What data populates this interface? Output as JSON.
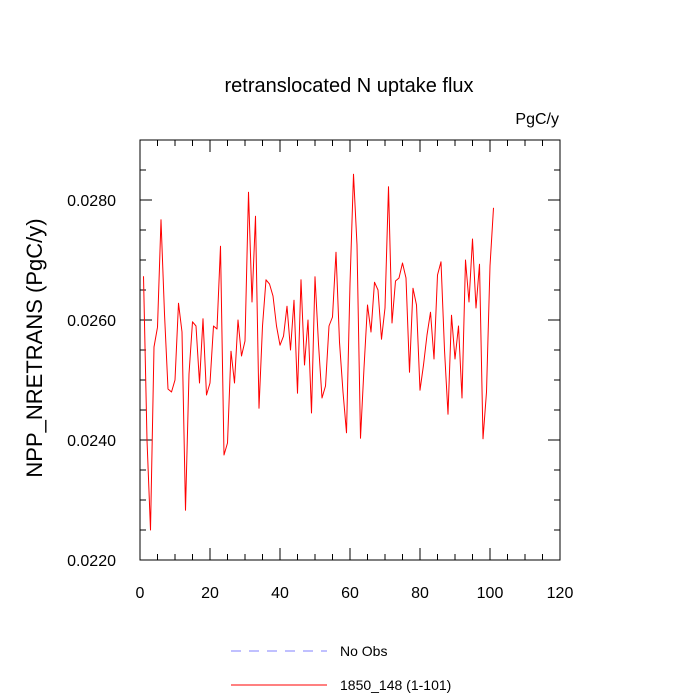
{
  "chart_data": {
    "type": "line",
    "title": "retranslocated N uptake flux",
    "units_label": "PgC/y",
    "ylabel": "NPP_NRETRANS  (PgC/y)",
    "xlabel": "",
    "xlim": [
      0,
      120
    ],
    "ylim": [
      0.022,
      0.029
    ],
    "x_ticks": [
      0,
      20,
      40,
      60,
      80,
      100,
      120
    ],
    "x_tick_labels": [
      "0",
      "20",
      "40",
      "60",
      "80",
      "100",
      "120"
    ],
    "y_ticks": [
      0.022,
      0.024,
      0.026,
      0.028
    ],
    "y_tick_labels": [
      "0.0220",
      "0.0240",
      "0.0260",
      "0.0280"
    ],
    "grid": false,
    "legend_position": "bottom",
    "series": [
      {
        "name": "No Obs",
        "color": "#8080ff",
        "style": "dashed",
        "x": [],
        "values": []
      },
      {
        "name": "1850_148 (1-101)",
        "color": "#ff0000",
        "style": "solid",
        "x": [
          1,
          2,
          3,
          4,
          5,
          6,
          7,
          8,
          9,
          10,
          11,
          12,
          13,
          14,
          15,
          16,
          17,
          18,
          19,
          20,
          21,
          22,
          23,
          24,
          25,
          26,
          27,
          28,
          29,
          30,
          31,
          32,
          33,
          34,
          35,
          36,
          37,
          38,
          39,
          40,
          41,
          42,
          43,
          44,
          45,
          46,
          47,
          48,
          49,
          50,
          51,
          52,
          53,
          54,
          55,
          56,
          57,
          58,
          59,
          60,
          61,
          62,
          63,
          64,
          65,
          66,
          67,
          68,
          69,
          70,
          71,
          72,
          73,
          74,
          75,
          76,
          77,
          78,
          79,
          80,
          81,
          82,
          83,
          84,
          85,
          86,
          87,
          88,
          89,
          90,
          91,
          92,
          93,
          94,
          95,
          96,
          97,
          98,
          99,
          100,
          101
        ],
        "values": [
          0.02673,
          0.024,
          0.0225,
          0.02555,
          0.02588,
          0.02767,
          0.0261,
          0.02485,
          0.0248,
          0.025,
          0.02628,
          0.0258,
          0.02283,
          0.0251,
          0.02597,
          0.0259,
          0.02495,
          0.02602,
          0.02475,
          0.02495,
          0.0259,
          0.02585,
          0.02723,
          0.02375,
          0.02395,
          0.02548,
          0.02495,
          0.026,
          0.0254,
          0.02565,
          0.02813,
          0.0263,
          0.02773,
          0.02453,
          0.0259,
          0.02667,
          0.0266,
          0.0264,
          0.0259,
          0.02558,
          0.02573,
          0.02623,
          0.0255,
          0.02633,
          0.02478,
          0.02667,
          0.02525,
          0.026,
          0.02445,
          0.02672,
          0.0256,
          0.0247,
          0.0249,
          0.0259,
          0.02605,
          0.02713,
          0.02563,
          0.0248,
          0.02412,
          0.0266,
          0.02843,
          0.02725,
          0.02403,
          0.0252,
          0.02625,
          0.0258,
          0.02663,
          0.0265,
          0.02568,
          0.0262,
          0.02822,
          0.02595,
          0.02665,
          0.0267,
          0.02695,
          0.0267,
          0.02513,
          0.02653,
          0.02625,
          0.02483,
          0.02525,
          0.02575,
          0.02613,
          0.02535,
          0.02675,
          0.02697,
          0.0255,
          0.02443,
          0.02608,
          0.02535,
          0.0259,
          0.0247,
          0.027,
          0.0263,
          0.02735,
          0.0262,
          0.02693,
          0.02402,
          0.0248,
          0.0269,
          0.02787
        ]
      }
    ]
  }
}
